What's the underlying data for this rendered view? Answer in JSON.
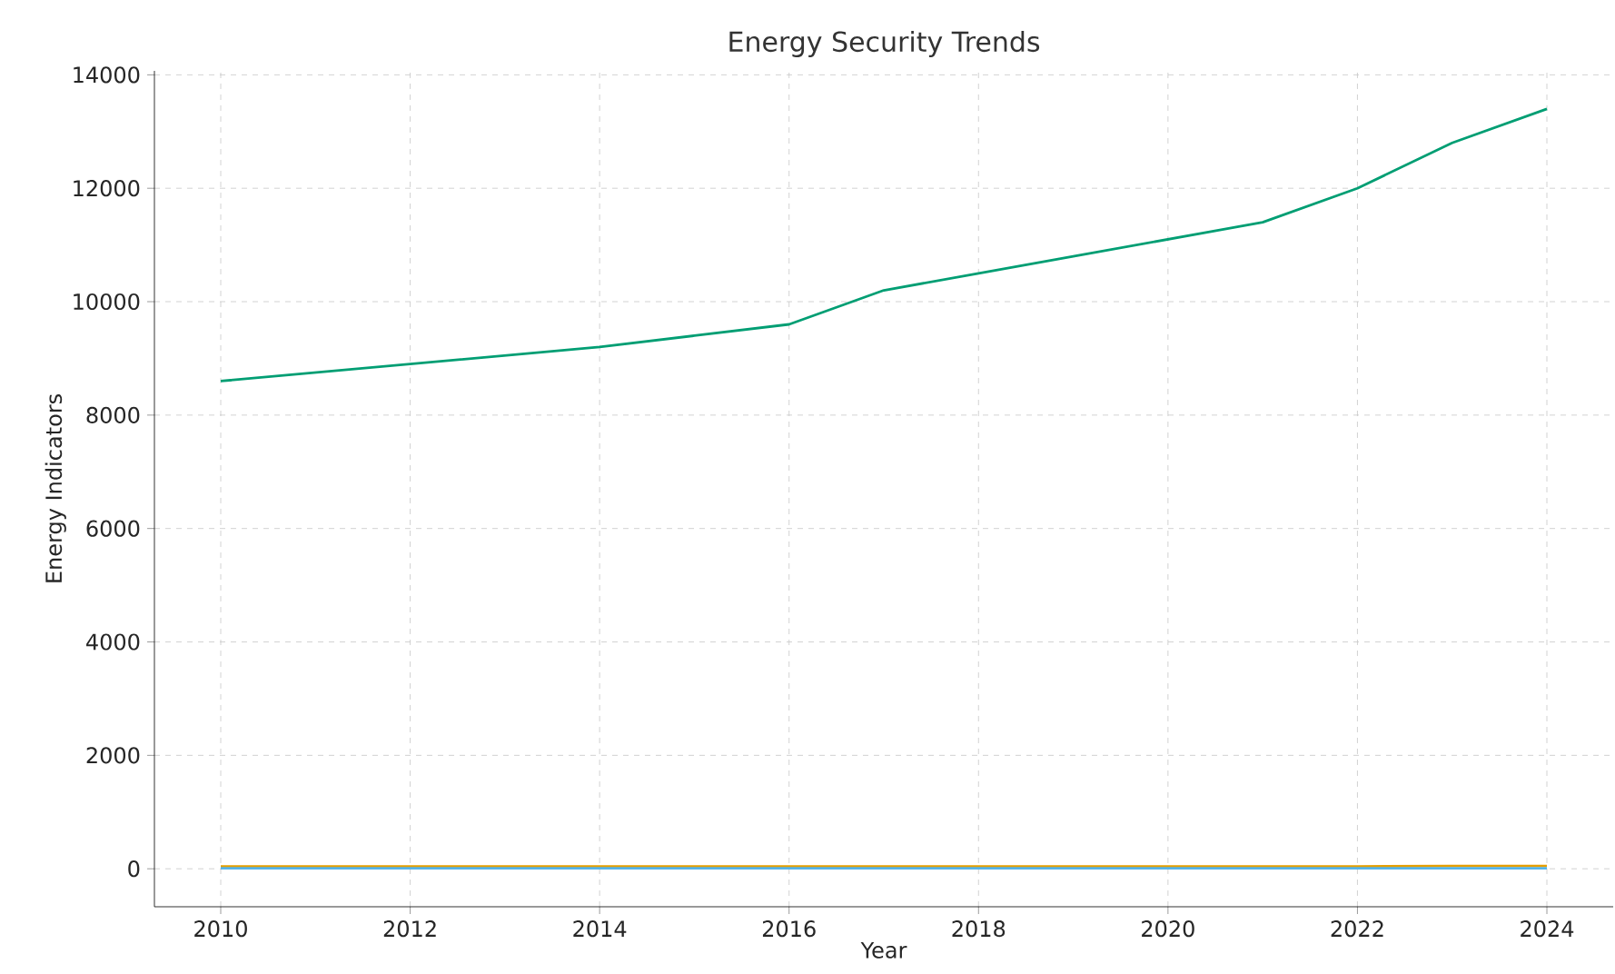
{
  "chart_data": {
    "type": "line",
    "title": "Energy Security Trends",
    "xlabel": "Year",
    "ylabel": "Energy Indicators",
    "x": [
      2010,
      2011,
      2012,
      2013,
      2014,
      2015,
      2016,
      2017,
      2018,
      2019,
      2020,
      2021,
      2022,
      2023,
      2024
    ],
    "series": [
      {
        "color": "#009e73",
        "values": [
          8600,
          8750,
          8900,
          9050,
          9200,
          9400,
          9600,
          10200,
          10500,
          10800,
          11100,
          11400,
          12000,
          12800,
          13400
        ]
      },
      {
        "color": "#e69f00",
        "values": [
          40,
          40,
          40,
          40,
          40,
          40,
          40,
          40,
          40,
          40,
          40,
          40,
          40,
          50,
          50
        ]
      },
      {
        "color": "#56b4e9",
        "values": [
          10,
          10,
          10,
          10,
          10,
          10,
          10,
          10,
          10,
          10,
          10,
          10,
          10,
          10,
          10
        ]
      }
    ],
    "xlim": [
      2009.3,
      2024.7
    ],
    "ylim": [
      -670,
      14070
    ],
    "xticks": [
      2010,
      2012,
      2014,
      2016,
      2018,
      2020,
      2022,
      2024
    ],
    "yticks": [
      0,
      2000,
      4000,
      6000,
      8000,
      10000,
      12000,
      14000
    ],
    "grid": true,
    "marker": "none",
    "line_style": "solid"
  }
}
